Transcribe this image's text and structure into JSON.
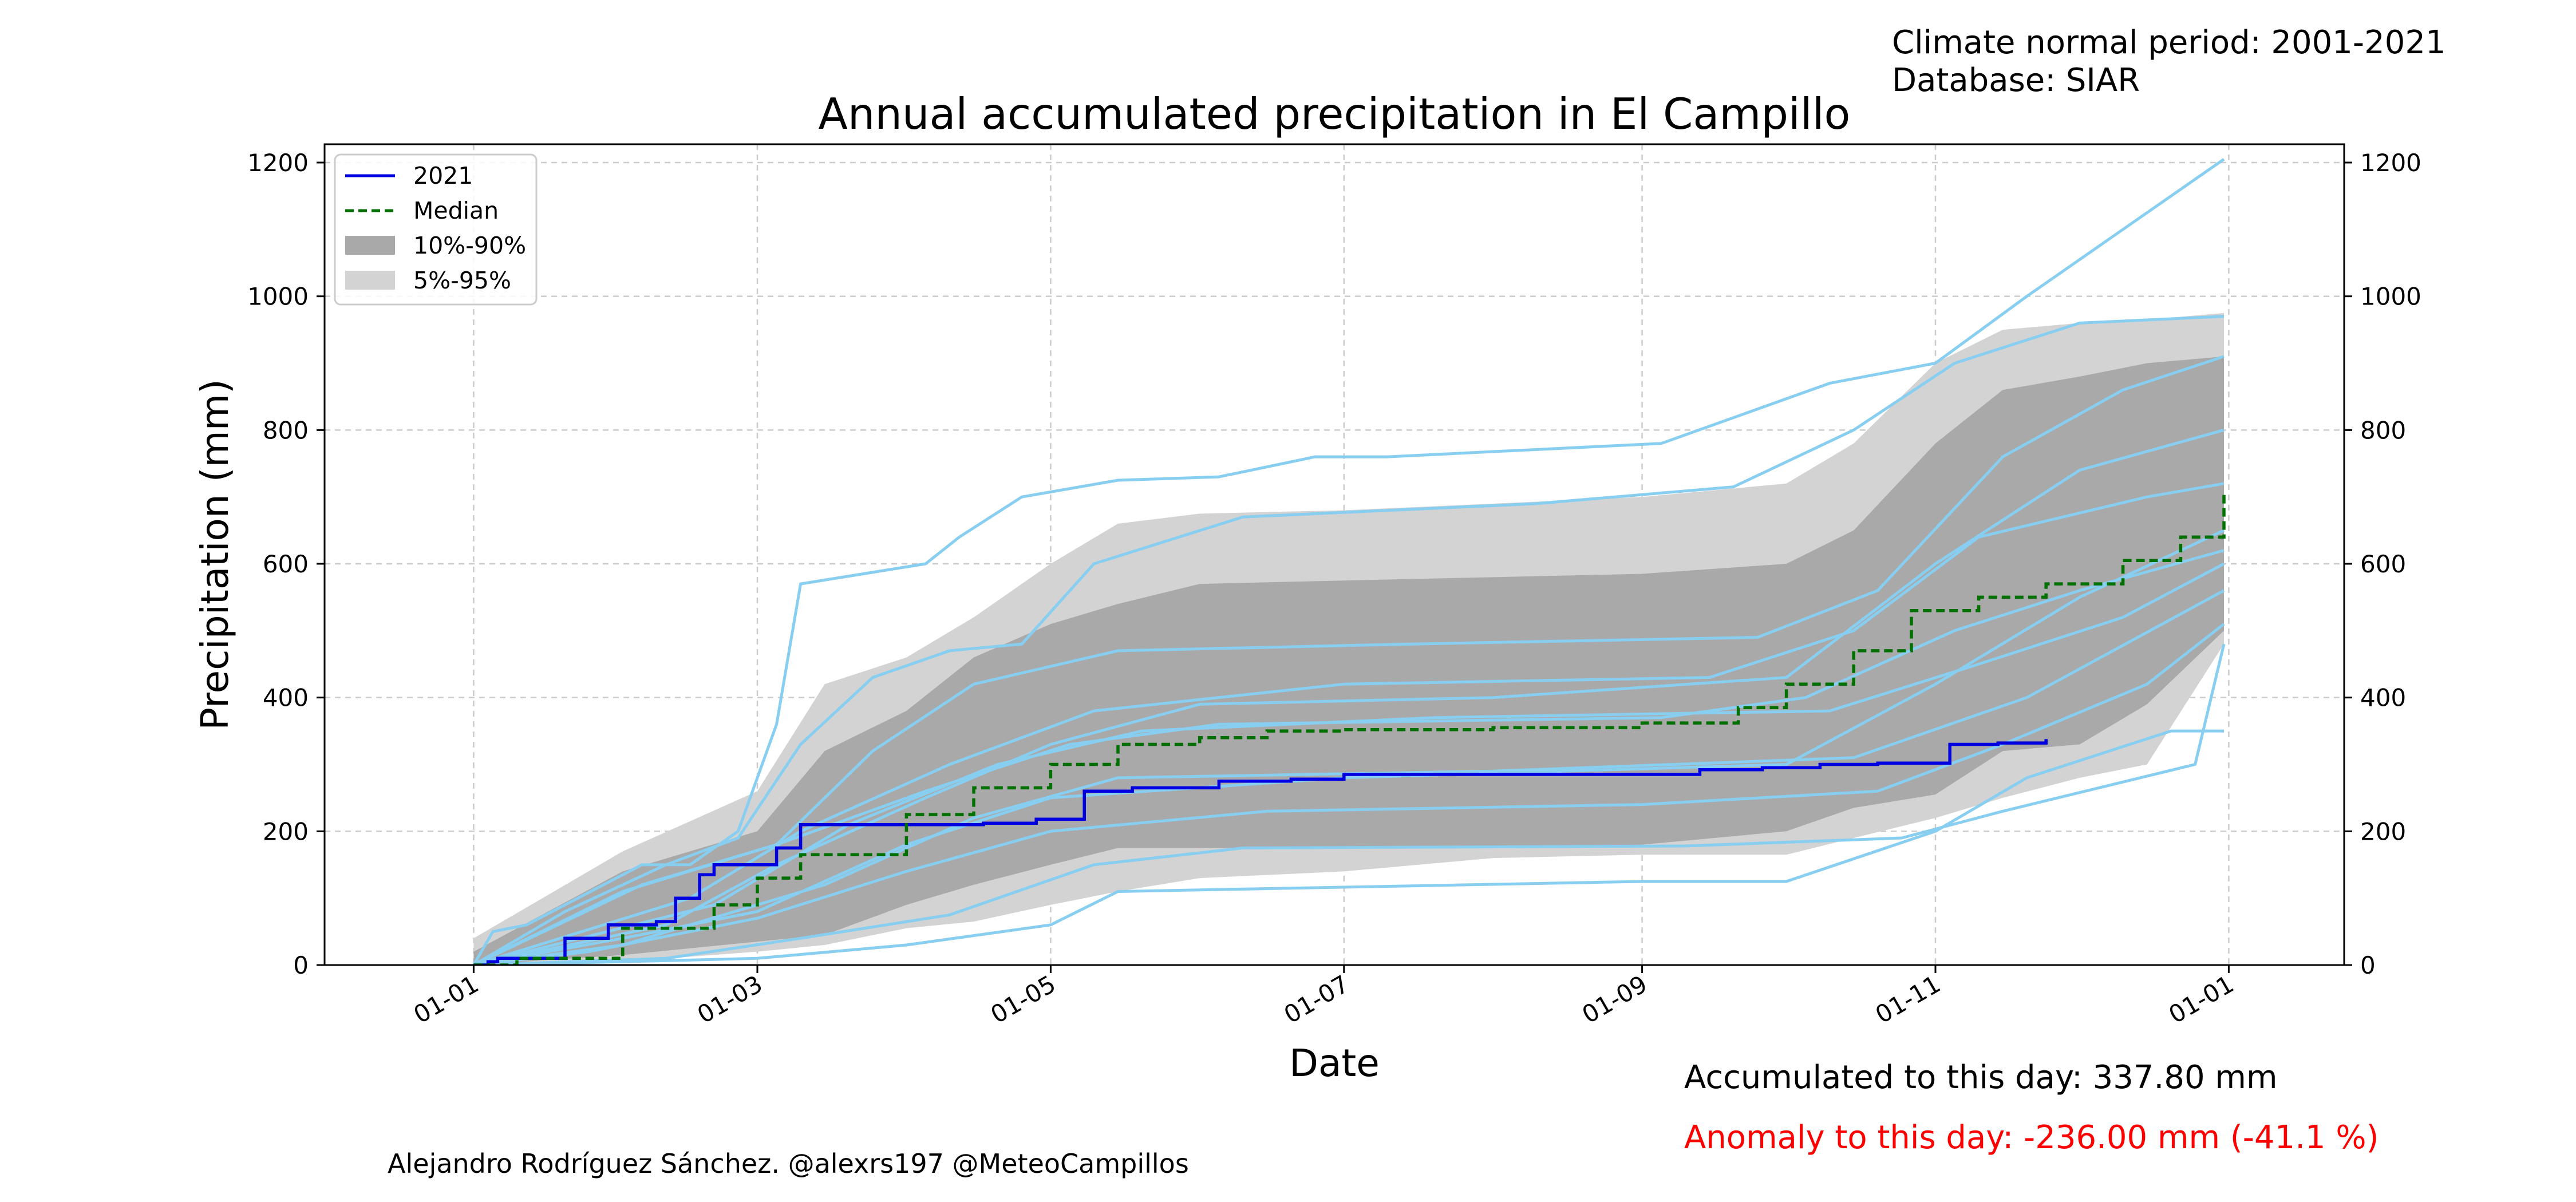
{
  "header": {
    "period_line": "Climate normal period: 2001-2021",
    "database_line": "Database: SIAR"
  },
  "footer": {
    "credit": "Alejandro Rodríguez Sánchez. @alexrs197 @MeteoCampillos",
    "accumulated": "Accumulated to this day: 337.80 mm",
    "anomaly": "Anomaly to this day: -236.00 mm (-41.1 %)"
  },
  "colors": {
    "current_year": "#0000e0",
    "median": "#007000",
    "band_10_90": "#a9a9a9",
    "band_5_95": "#d3d3d3",
    "historical_years": "#87cef0",
    "anomaly_text": "#ff0000",
    "grid": "#cccccc"
  },
  "chart_data": {
    "type": "line",
    "title": "Annual accumulated precipitation in El Campillo",
    "xlabel": "Date",
    "ylabel": "Precipitation (mm)",
    "ylim": [
      0,
      1200
    ],
    "xlim": [
      "2020-12-01",
      "2022-01-25"
    ],
    "yticks": [
      0,
      200,
      400,
      600,
      800,
      1000,
      1200
    ],
    "xticks": [
      {
        "date": "2021-01-01",
        "label": "01-01"
      },
      {
        "date": "2021-03-01",
        "label": "01-03"
      },
      {
        "date": "2021-05-01",
        "label": "01-05"
      },
      {
        "date": "2021-07-01",
        "label": "01-07"
      },
      {
        "date": "2021-09-01",
        "label": "01-09"
      },
      {
        "date": "2021-11-01",
        "label": "01-11"
      },
      {
        "date": "2022-01-01",
        "label": "01-01"
      }
    ],
    "grid": true,
    "secondary_y_axis": true,
    "legend": {
      "placement": "top-left",
      "entries": [
        {
          "label": "2021",
          "style": "line"
        },
        {
          "label": "Median",
          "style": "dashed"
        },
        {
          "label": "10%-90%",
          "style": "band"
        },
        {
          "label": "5%-95%",
          "style": "band"
        }
      ]
    },
    "series": [
      {
        "name": "2021",
        "style": "line",
        "x": [
          "2021-01-01",
          "2021-01-04",
          "2021-01-06",
          "2021-01-10",
          "2021-01-20",
          "2021-01-29",
          "2021-02-08",
          "2021-02-12",
          "2021-02-17",
          "2021-02-20",
          "2021-03-05",
          "2021-03-10",
          "2021-04-17",
          "2021-04-28",
          "2021-05-08",
          "2021-05-18",
          "2021-06-05",
          "2021-06-20",
          "2021-07-01",
          "2021-08-01",
          "2021-09-01",
          "2021-09-13",
          "2021-09-26",
          "2021-10-08",
          "2021-10-20",
          "2021-10-29",
          "2021-11-04",
          "2021-11-14",
          "2021-11-24"
        ],
        "y": [
          0,
          5,
          10,
          10,
          40,
          60,
          65,
          100,
          135,
          150,
          175,
          210,
          212,
          218,
          260,
          265,
          275,
          278,
          285,
          285,
          285,
          292,
          295,
          300,
          302,
          302,
          330,
          332,
          337.8
        ]
      },
      {
        "name": "Median",
        "style": "dashed",
        "x": [
          "2021-01-01",
          "2021-01-10",
          "2021-02-01",
          "2021-02-20",
          "2021-03-01",
          "2021-03-10",
          "2021-04-01",
          "2021-04-15",
          "2021-05-01",
          "2021-05-15",
          "2021-06-01",
          "2021-06-15",
          "2021-07-01",
          "2021-08-01",
          "2021-09-01",
          "2021-09-21",
          "2021-10-01",
          "2021-10-15",
          "2021-10-27",
          "2021-11-10",
          "2021-11-24",
          "2021-12-10",
          "2021-12-22",
          "2021-12-31"
        ],
        "y": [
          0,
          10,
          55,
          90,
          130,
          165,
          225,
          265,
          300,
          330,
          340,
          350,
          352,
          355,
          362,
          385,
          420,
          470,
          530,
          550,
          570,
          605,
          640,
          705
        ]
      }
    ],
    "bands": [
      {
        "name": "5%-95%",
        "x": [
          "2021-01-01",
          "2021-02-01",
          "2021-03-01",
          "2021-03-15",
          "2021-04-01",
          "2021-04-15",
          "2021-05-01",
          "2021-05-15",
          "2021-06-01",
          "2021-07-01",
          "2021-08-01",
          "2021-09-01",
          "2021-10-01",
          "2021-10-15",
          "2021-11-01",
          "2021-11-15",
          "2021-12-01",
          "2021-12-15",
          "2021-12-31"
        ],
        "upper": [
          40,
          170,
          260,
          420,
          460,
          520,
          600,
          660,
          675,
          680,
          690,
          700,
          720,
          780,
          900,
          950,
          960,
          965,
          975
        ],
        "lower": [
          0,
          5,
          20,
          30,
          55,
          65,
          90,
          110,
          130,
          140,
          160,
          165,
          165,
          190,
          220,
          250,
          280,
          300,
          480
        ]
      },
      {
        "name": "10%-90%",
        "x": [
          "2021-01-01",
          "2021-02-01",
          "2021-03-01",
          "2021-03-15",
          "2021-04-01",
          "2021-04-15",
          "2021-05-01",
          "2021-05-15",
          "2021-06-01",
          "2021-07-01",
          "2021-08-01",
          "2021-09-01",
          "2021-10-01",
          "2021-10-15",
          "2021-11-01",
          "2021-11-15",
          "2021-12-01",
          "2021-12-15",
          "2021-12-31"
        ],
        "upper": [
          20,
          140,
          200,
          320,
          380,
          460,
          510,
          540,
          570,
          575,
          580,
          585,
          600,
          650,
          780,
          860,
          880,
          900,
          910
        ],
        "lower": [
          0,
          15,
          35,
          45,
          90,
          120,
          150,
          175,
          175,
          175,
          175,
          180,
          200,
          235,
          255,
          320,
          330,
          390,
          500
        ]
      }
    ],
    "historical_years": [
      {
        "x": [
          "2021-01-01",
          "2021-01-05",
          "2021-01-12",
          "2021-02-05",
          "2021-02-15",
          "2021-02-25",
          "2021-03-05",
          "2021-03-10",
          "2021-04-05",
          "2021-04-12",
          "2021-04-25",
          "2021-05-15",
          "2021-06-05",
          "2021-06-25",
          "2021-07-10",
          "2021-09-05",
          "2021-10-10",
          "2021-11-01",
          "2021-11-20",
          "2021-12-20",
          "2021-12-31"
        ],
        "y": [
          0,
          50,
          60,
          150,
          150,
          200,
          360,
          570,
          600,
          640,
          700,
          725,
          730,
          760,
          760,
          780,
          870,
          900,
          1000,
          1150,
          1205
        ]
      },
      {
        "x": [
          "2021-01-01",
          "2021-01-20",
          "2021-02-10",
          "2021-02-25",
          "2021-03-10",
          "2021-03-25",
          "2021-04-10",
          "2021-04-25",
          "2021-05-10",
          "2021-06-10",
          "2021-08-10",
          "2021-09-20",
          "2021-10-15",
          "2021-11-05",
          "2021-12-01",
          "2021-12-31"
        ],
        "y": [
          0,
          80,
          150,
          190,
          330,
          430,
          470,
          480,
          600,
          670,
          690,
          715,
          800,
          900,
          960,
          970
        ]
      },
      {
        "x": [
          "2021-01-01",
          "2021-02-05",
          "2021-03-05",
          "2021-03-25",
          "2021-04-15",
          "2021-05-15",
          "2021-07-15",
          "2021-09-25",
          "2021-10-20",
          "2021-11-15",
          "2021-12-10",
          "2021-12-31"
        ],
        "y": [
          0,
          120,
          180,
          320,
          420,
          470,
          480,
          490,
          560,
          760,
          860,
          910
        ]
      },
      {
        "x": [
          "2021-01-01",
          "2021-02-10",
          "2021-03-05",
          "2021-04-05",
          "2021-05-01",
          "2021-06-01",
          "2021-08-01",
          "2021-10-01",
          "2021-11-01",
          "2021-12-01",
          "2021-12-31"
        ],
        "y": [
          0,
          60,
          150,
          250,
          330,
          390,
          400,
          430,
          600,
          740,
          800
        ]
      },
      {
        "x": [
          "2021-01-01",
          "2021-02-15",
          "2021-03-10",
          "2021-04-10",
          "2021-05-10",
          "2021-07-01",
          "2021-09-15",
          "2021-10-15",
          "2021-11-10",
          "2021-12-15",
          "2021-12-31"
        ],
        "y": [
          0,
          100,
          200,
          300,
          380,
          420,
          430,
          500,
          640,
          700,
          720
        ]
      },
      {
        "x": [
          "2021-01-01",
          "2021-02-01",
          "2021-03-01",
          "2021-04-01",
          "2021-05-01",
          "2021-07-01",
          "2021-10-01",
          "2021-11-01",
          "2021-12-01",
          "2021-12-31"
        ],
        "y": [
          0,
          40,
          80,
          180,
          250,
          280,
          300,
          420,
          550,
          650
        ]
      },
      {
        "x": [
          "2021-01-01",
          "2021-02-20",
          "2021-03-20",
          "2021-04-20",
          "2021-05-20",
          "2021-07-20",
          "2021-10-10",
          "2021-11-10",
          "2021-12-10",
          "2021-12-31"
        ],
        "y": [
          0,
          90,
          210,
          300,
          350,
          370,
          380,
          450,
          520,
          600
        ]
      },
      {
        "x": [
          "2021-01-01",
          "2021-02-01",
          "2021-03-15",
          "2021-04-15",
          "2021-05-15",
          "2021-08-01",
          "2021-10-15",
          "2021-11-20",
          "2021-12-31"
        ],
        "y": [
          0,
          30,
          120,
          220,
          280,
          290,
          310,
          400,
          560
        ]
      },
      {
        "x": [
          "2021-01-01",
          "2021-01-25",
          "2021-03-01",
          "2021-04-01",
          "2021-05-01",
          "2021-06-15",
          "2021-09-01",
          "2021-10-20",
          "2021-11-15",
          "2021-12-15",
          "2021-12-31"
        ],
        "y": [
          0,
          20,
          70,
          140,
          200,
          230,
          240,
          260,
          330,
          420,
          510
        ]
      },
      {
        "x": [
          "2021-01-01",
          "2021-02-10",
          "2021-03-10",
          "2021-04-10",
          "2021-05-10",
          "2021-06-10",
          "2021-09-10",
          "2021-10-25",
          "2021-11-15",
          "2021-12-25",
          "2021-12-31"
        ],
        "y": [
          0,
          10,
          40,
          75,
          150,
          175,
          178,
          190,
          230,
          300,
          480
        ]
      },
      {
        "x": [
          "2021-01-01",
          "2021-02-01",
          "2021-03-01",
          "2021-04-01",
          "2021-05-01",
          "2021-05-15",
          "2021-09-01",
          "2021-10-01",
          "2021-11-01",
          "2021-11-20",
          "2021-12-20",
          "2021-12-31"
        ],
        "y": [
          0,
          5,
          10,
          30,
          60,
          110,
          125,
          125,
          200,
          280,
          350,
          350
        ]
      },
      {
        "x": [
          "2021-01-01",
          "2021-02-01",
          "2021-03-05",
          "2021-04-05",
          "2021-05-05",
          "2021-06-05",
          "2021-09-05",
          "2021-10-05",
          "2021-11-05",
          "2021-12-01",
          "2021-12-31"
        ],
        "y": [
          0,
          110,
          180,
          260,
          330,
          360,
          370,
          400,
          500,
          560,
          620
        ]
      }
    ]
  }
}
